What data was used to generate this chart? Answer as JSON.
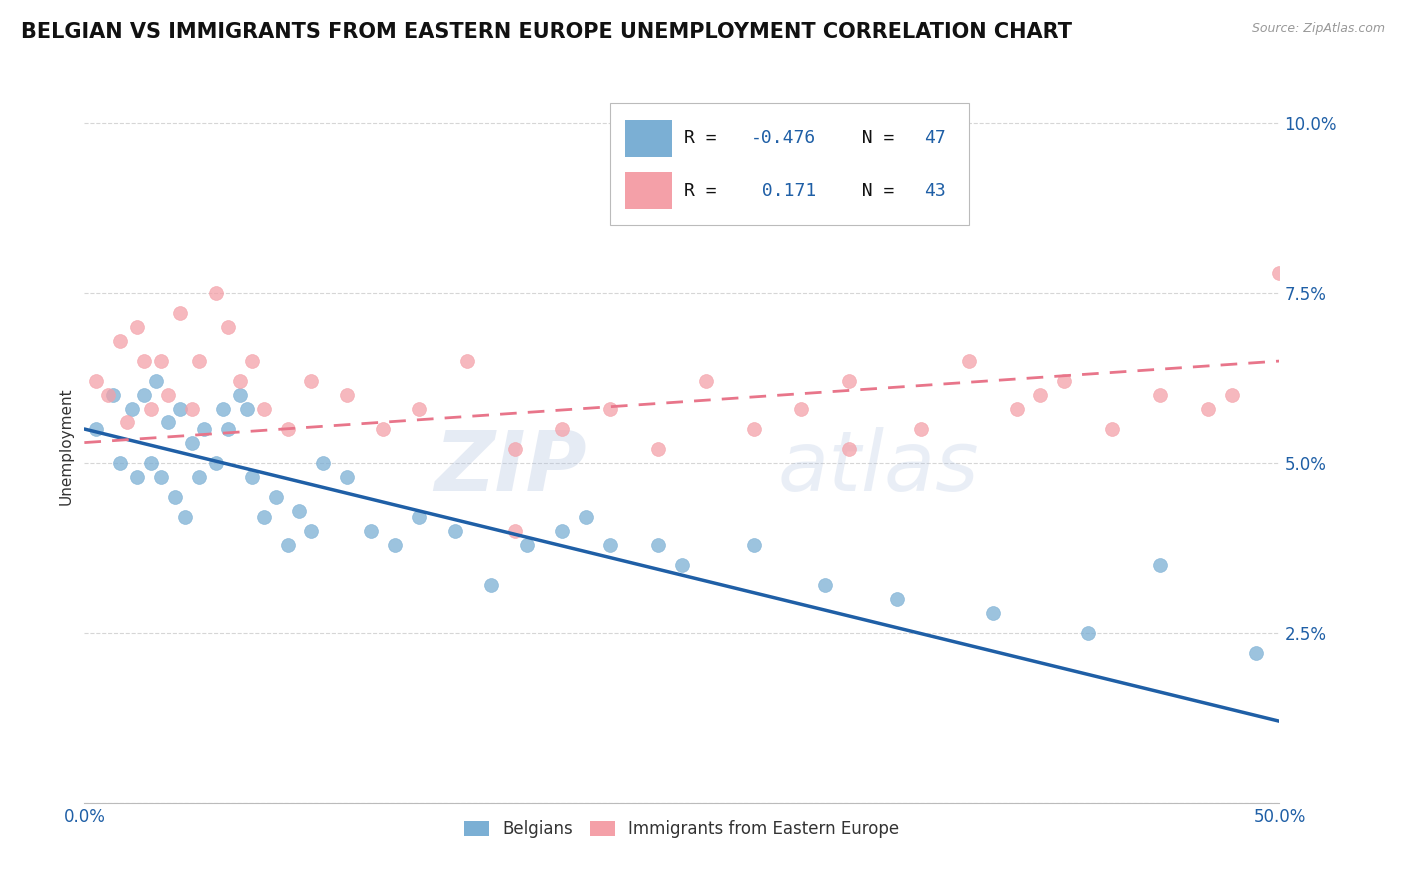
{
  "title": "BELGIAN VS IMMIGRANTS FROM EASTERN EUROPE UNEMPLOYMENT CORRELATION CHART",
  "source": "Source: ZipAtlas.com",
  "ylabel": "Unemployment",
  "xlim": [
    0.0,
    0.5
  ],
  "ylim": [
    0.0,
    0.105
  ],
  "yticks": [
    0.0,
    0.025,
    0.05,
    0.075,
    0.1
  ],
  "ytick_labels": [
    "",
    "2.5%",
    "5.0%",
    "7.5%",
    "10.0%"
  ],
  "xticks": [
    0.0,
    0.1,
    0.2,
    0.3,
    0.4,
    0.5
  ],
  "xtick_labels": [
    "0.0%",
    "",
    "",
    "",
    "",
    "50.0%"
  ],
  "legend_labels": [
    "Belgians",
    "Immigrants from Eastern Europe"
  ],
  "blue_color": "#7BAFD4",
  "pink_color": "#F4A0A8",
  "blue_line_color": "#1F5FA6",
  "pink_line_color": "#E8758A",
  "R_blue": -0.476,
  "N_blue": 47,
  "R_pink": 0.171,
  "N_pink": 43,
  "blue_scatter_x": [
    0.005,
    0.012,
    0.015,
    0.02,
    0.022,
    0.025,
    0.028,
    0.03,
    0.032,
    0.035,
    0.038,
    0.04,
    0.042,
    0.045,
    0.048,
    0.05,
    0.055,
    0.058,
    0.06,
    0.065,
    0.068,
    0.07,
    0.075,
    0.08,
    0.085,
    0.09,
    0.095,
    0.1,
    0.11,
    0.12,
    0.13,
    0.14,
    0.155,
    0.17,
    0.185,
    0.2,
    0.21,
    0.22,
    0.24,
    0.25,
    0.28,
    0.31,
    0.34,
    0.38,
    0.42,
    0.45,
    0.49
  ],
  "blue_scatter_y": [
    0.055,
    0.06,
    0.05,
    0.058,
    0.048,
    0.06,
    0.05,
    0.062,
    0.048,
    0.056,
    0.045,
    0.058,
    0.042,
    0.053,
    0.048,
    0.055,
    0.05,
    0.058,
    0.055,
    0.06,
    0.058,
    0.048,
    0.042,
    0.045,
    0.038,
    0.043,
    0.04,
    0.05,
    0.048,
    0.04,
    0.038,
    0.042,
    0.04,
    0.032,
    0.038,
    0.04,
    0.042,
    0.038,
    0.038,
    0.035,
    0.038,
    0.032,
    0.03,
    0.028,
    0.025,
    0.035,
    0.022
  ],
  "pink_scatter_x": [
    0.005,
    0.01,
    0.015,
    0.018,
    0.022,
    0.025,
    0.028,
    0.032,
    0.035,
    0.04,
    0.045,
    0.048,
    0.055,
    0.06,
    0.065,
    0.07,
    0.075,
    0.085,
    0.095,
    0.11,
    0.125,
    0.14,
    0.16,
    0.18,
    0.2,
    0.22,
    0.24,
    0.26,
    0.28,
    0.3,
    0.32,
    0.35,
    0.37,
    0.39,
    0.41,
    0.43,
    0.45,
    0.47,
    0.48,
    0.5,
    0.4,
    0.32,
    0.18
  ],
  "pink_scatter_y": [
    0.062,
    0.06,
    0.068,
    0.056,
    0.07,
    0.065,
    0.058,
    0.065,
    0.06,
    0.072,
    0.058,
    0.065,
    0.075,
    0.07,
    0.062,
    0.065,
    0.058,
    0.055,
    0.062,
    0.06,
    0.055,
    0.058,
    0.065,
    0.052,
    0.055,
    0.058,
    0.052,
    0.062,
    0.055,
    0.058,
    0.062,
    0.055,
    0.065,
    0.058,
    0.062,
    0.055,
    0.06,
    0.058,
    0.06,
    0.078,
    0.06,
    0.052,
    0.04
  ],
  "background_color": "#FFFFFF",
  "grid_color": "#CCCCCC",
  "watermark_text": "ZIP",
  "watermark_text2": "atlas",
  "title_fontsize": 15,
  "axis_label_fontsize": 11,
  "tick_fontsize": 12
}
